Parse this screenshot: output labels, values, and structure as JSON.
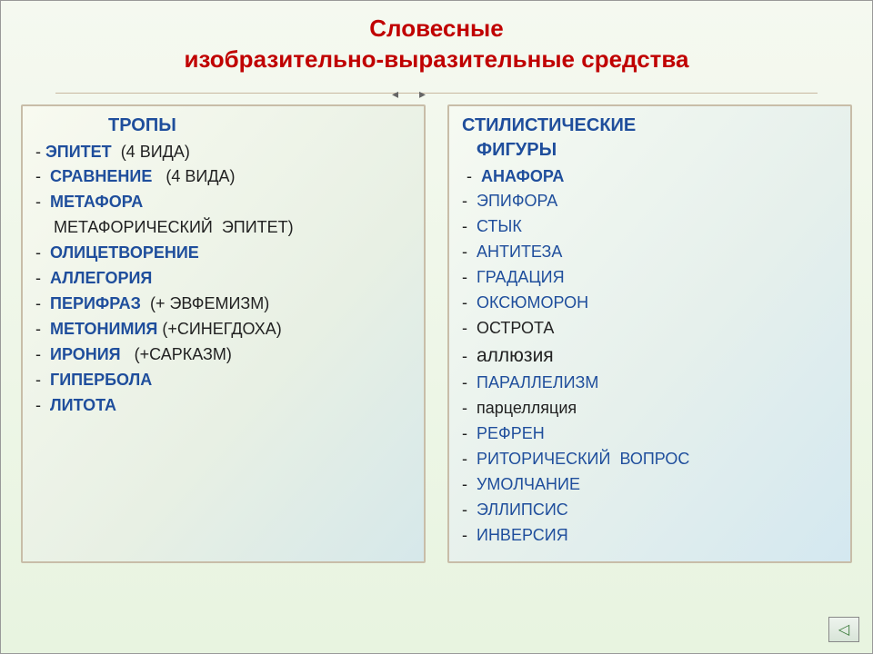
{
  "title": {
    "line1": "Словесные",
    "line2": "изобразительно-выразительные средства",
    "color": "#c00000",
    "fontsize": 26
  },
  "divider": {
    "arrow_left": "◂",
    "arrow_right": "▸",
    "line_color": "#c8b8a0"
  },
  "left": {
    "header": "ТРОПЫ",
    "header_color": "#1f4e9c",
    "items": [
      {
        "dash": "- ",
        "term": "ЭПИТЕТ  ",
        "note": "(4 ВИДА)"
      },
      {
        "dash": "-  ",
        "term": "СРАВНЕНИЕ   ",
        "note": "(4 ВИДА)"
      },
      {
        "dash": "-  ",
        "term": "МЕТАФОРА",
        "note": ""
      },
      {
        "dash": "    ",
        "term": "",
        "note": "МЕТАФОРИЧЕСКИЙ  ЭПИТЕТ)"
      },
      {
        "dash": "-  ",
        "term": "ОЛИЦЕТВОРЕНИЕ",
        "note": ""
      },
      {
        "dash": "-  ",
        "term": "АЛЛЕГОРИЯ",
        "note": ""
      },
      {
        "dash": "-  ",
        "term": "ПЕРИФРАЗ  ",
        "note": "(+ ЭВФЕМИЗМ)"
      },
      {
        "dash": "-  ",
        "term": "МЕТОНИМИЯ ",
        "note": "(+СИНЕГДОХА)"
      },
      {
        "dash": "-  ",
        "term": "ИРОНИЯ   ",
        "note": "(+САРКАЗМ)"
      },
      {
        "dash": "-  ",
        "term": "ГИПЕРБОЛА",
        "note": ""
      },
      {
        "dash": "-  ",
        "term": "ЛИТОТА",
        "note": ""
      }
    ]
  },
  "right": {
    "header1": "СТИЛИСТИЧЕСКИЕ",
    "header2": "ФИГУРЫ",
    "header_color": "#1f4e9c",
    "items": [
      {
        "dash": " -  ",
        "term": "АНАФОРА",
        "bold": true,
        "blue": true
      },
      {
        "dash": "-  ",
        "term": "ЭПИФОРА",
        "bold": false,
        "blue": true
      },
      {
        "dash": "-  ",
        "term": "СТЫК",
        "bold": false,
        "blue": true
      },
      {
        "dash": "-  ",
        "term": "АНТИТЕЗА",
        "bold": false,
        "blue": true
      },
      {
        "dash": "-  ",
        "term": "ГРАДАЦИЯ",
        "bold": false,
        "blue": true
      },
      {
        "dash": "-  ",
        "term": "ОКСЮМОРОН",
        "bold": false,
        "blue": true
      },
      {
        "dash": "-  ",
        "term": "ОСТРОТА",
        "bold": false,
        "blue": false
      },
      {
        "dash": "-  ",
        "term": "аллюзия",
        "bold": false,
        "blue": false,
        "fontsize": 21
      },
      {
        "dash": "-  ",
        "term": "ПАРАЛЛЕЛИЗМ",
        "bold": false,
        "blue": true
      },
      {
        "dash": "-  ",
        "term": "парцелляция",
        "bold": false,
        "blue": false
      },
      {
        "dash": "-  ",
        "term": "РЕФРЕН",
        "bold": false,
        "blue": true
      },
      {
        "dash": "-  ",
        "term": "РИТОРИЧЕСКИЙ  ВОПРОС",
        "bold": false,
        "blue": true
      },
      {
        "dash": "-  ",
        "term": "УМОЛЧАНИЕ",
        "bold": false,
        "blue": true
      },
      {
        "dash": "-  ",
        "term": "ЭЛЛИПСИС",
        "bold": false,
        "blue": true
      },
      {
        "dash": "-  ",
        "term": "ИНВЕРСИЯ",
        "bold": false,
        "blue": true
      }
    ]
  },
  "nav": {
    "glyph": "◁"
  },
  "colors": {
    "term_blue": "#1f4e9c",
    "note_black": "#222",
    "box_border": "#c8bda8"
  }
}
